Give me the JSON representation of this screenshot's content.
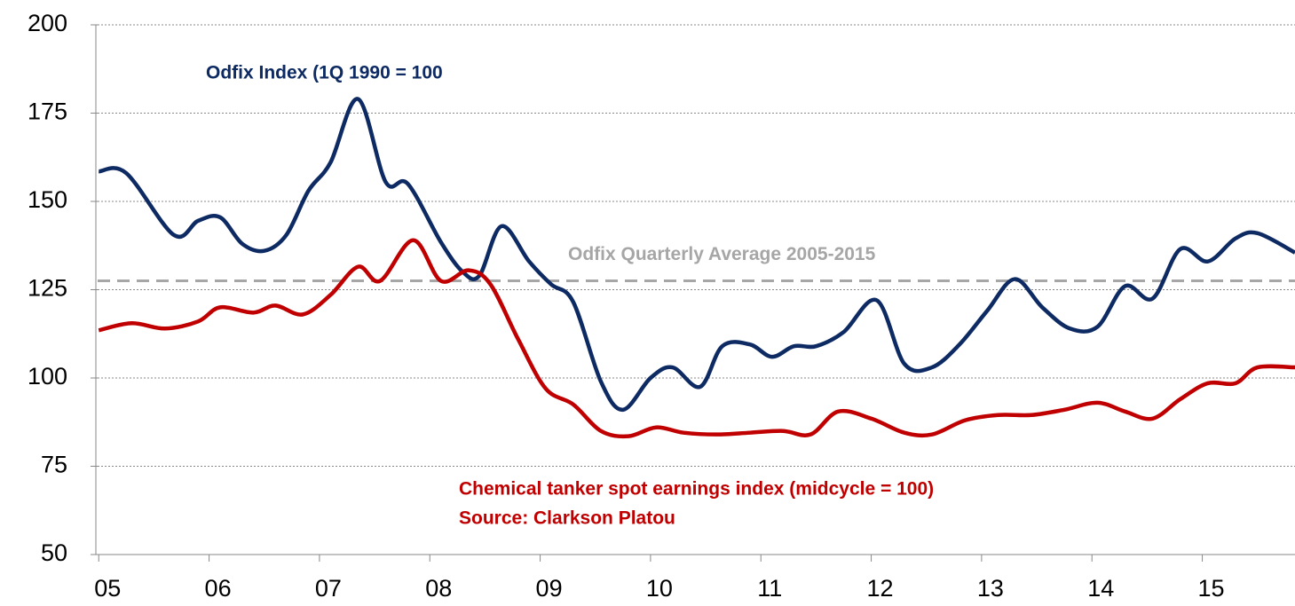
{
  "chart_data": {
    "type": "line",
    "series": [
      {
        "name": "Odfix Index (1Q 1990 = 100",
        "color": "#0d2a63",
        "x": [
          2005.0,
          2005.25,
          2005.68,
          2005.9,
          2006.1,
          2006.3,
          2006.5,
          2006.7,
          2006.9,
          2007.1,
          2007.35,
          2007.6,
          2007.8,
          2008.1,
          2008.3,
          2008.45,
          2008.65,
          2008.9,
          2009.1,
          2009.3,
          2009.55,
          2009.75,
          2010.0,
          2010.2,
          2010.45,
          2010.65,
          2010.9,
          2011.1,
          2011.3,
          2011.5,
          2011.75,
          2012.05,
          2012.3,
          2012.55,
          2012.8,
          2013.05,
          2013.3,
          2013.55,
          2013.8,
          2014.05,
          2014.3,
          2014.55,
          2014.8,
          2015.05,
          2015.3,
          2015.5,
          2015.84
        ],
        "values": [
          158.5,
          158,
          140.5,
          144.5,
          145.5,
          138,
          136,
          140.5,
          153,
          161,
          179,
          155.5,
          155,
          138.5,
          130,
          129,
          143,
          133,
          126.5,
          121.5,
          99,
          91,
          100,
          103,
          97.5,
          109,
          109.5,
          106,
          109,
          109,
          113,
          122,
          104,
          103,
          109.5,
          119,
          128,
          120,
          114,
          114.5,
          126,
          122.5,
          136.5,
          133,
          139.5,
          141,
          135.5
        ]
      },
      {
        "name": "Chemical tanker spot earnings index (midcycle = 100)",
        "color": "#c00000",
        "x": [
          2005.0,
          2005.3,
          2005.6,
          2005.9,
          2006.1,
          2006.4,
          2006.6,
          2006.85,
          2007.1,
          2007.35,
          2007.55,
          2007.85,
          2008.1,
          2008.35,
          2008.55,
          2008.8,
          2009.05,
          2009.3,
          2009.55,
          2009.8,
          2010.05,
          2010.3,
          2010.6,
          2010.9,
          2011.2,
          2011.45,
          2011.7,
          2012.0,
          2012.3,
          2012.55,
          2012.85,
          2013.15,
          2013.45,
          2013.75,
          2014.05,
          2014.3,
          2014.55,
          2014.8,
          2015.05,
          2015.3,
          2015.5,
          2015.84
        ],
        "values": [
          113.5,
          115.5,
          114,
          116,
          120,
          118.5,
          120.5,
          118,
          123.5,
          131.5,
          127.5,
          139,
          127.5,
          130.5,
          126.5,
          111,
          97,
          92.5,
          85,
          83.5,
          86,
          84.5,
          84,
          84.5,
          85,
          84,
          90.5,
          88.5,
          84.5,
          84,
          88,
          89.5,
          89.5,
          91,
          93,
          90.5,
          88.5,
          94,
          98.5,
          98.5,
          103,
          103
        ]
      }
    ],
    "reference_line": {
      "label": "Odfix Quarterly Average 2005-2015",
      "value": 127.5,
      "color": "#a6a6a6"
    },
    "annotations": [
      "Source: Clarkson Platou"
    ],
    "xlim": [
      2004.99,
      2015.84
    ],
    "xticks": [
      {
        "value": 2005,
        "label": "05"
      },
      {
        "value": 2006,
        "label": "06"
      },
      {
        "value": 2007,
        "label": "07"
      },
      {
        "value": 2008,
        "label": "08"
      },
      {
        "value": 2009,
        "label": "09"
      },
      {
        "value": 2010,
        "label": "10"
      },
      {
        "value": 2011,
        "label": "11"
      },
      {
        "value": 2012,
        "label": "12"
      },
      {
        "value": 2013,
        "label": "13"
      },
      {
        "value": 2014,
        "label": "14"
      },
      {
        "value": 2015,
        "label": "15"
      }
    ],
    "ylim": [
      50,
      200
    ],
    "yticks": [
      50,
      75,
      100,
      125,
      150,
      175,
      200
    ],
    "grid": true
  }
}
